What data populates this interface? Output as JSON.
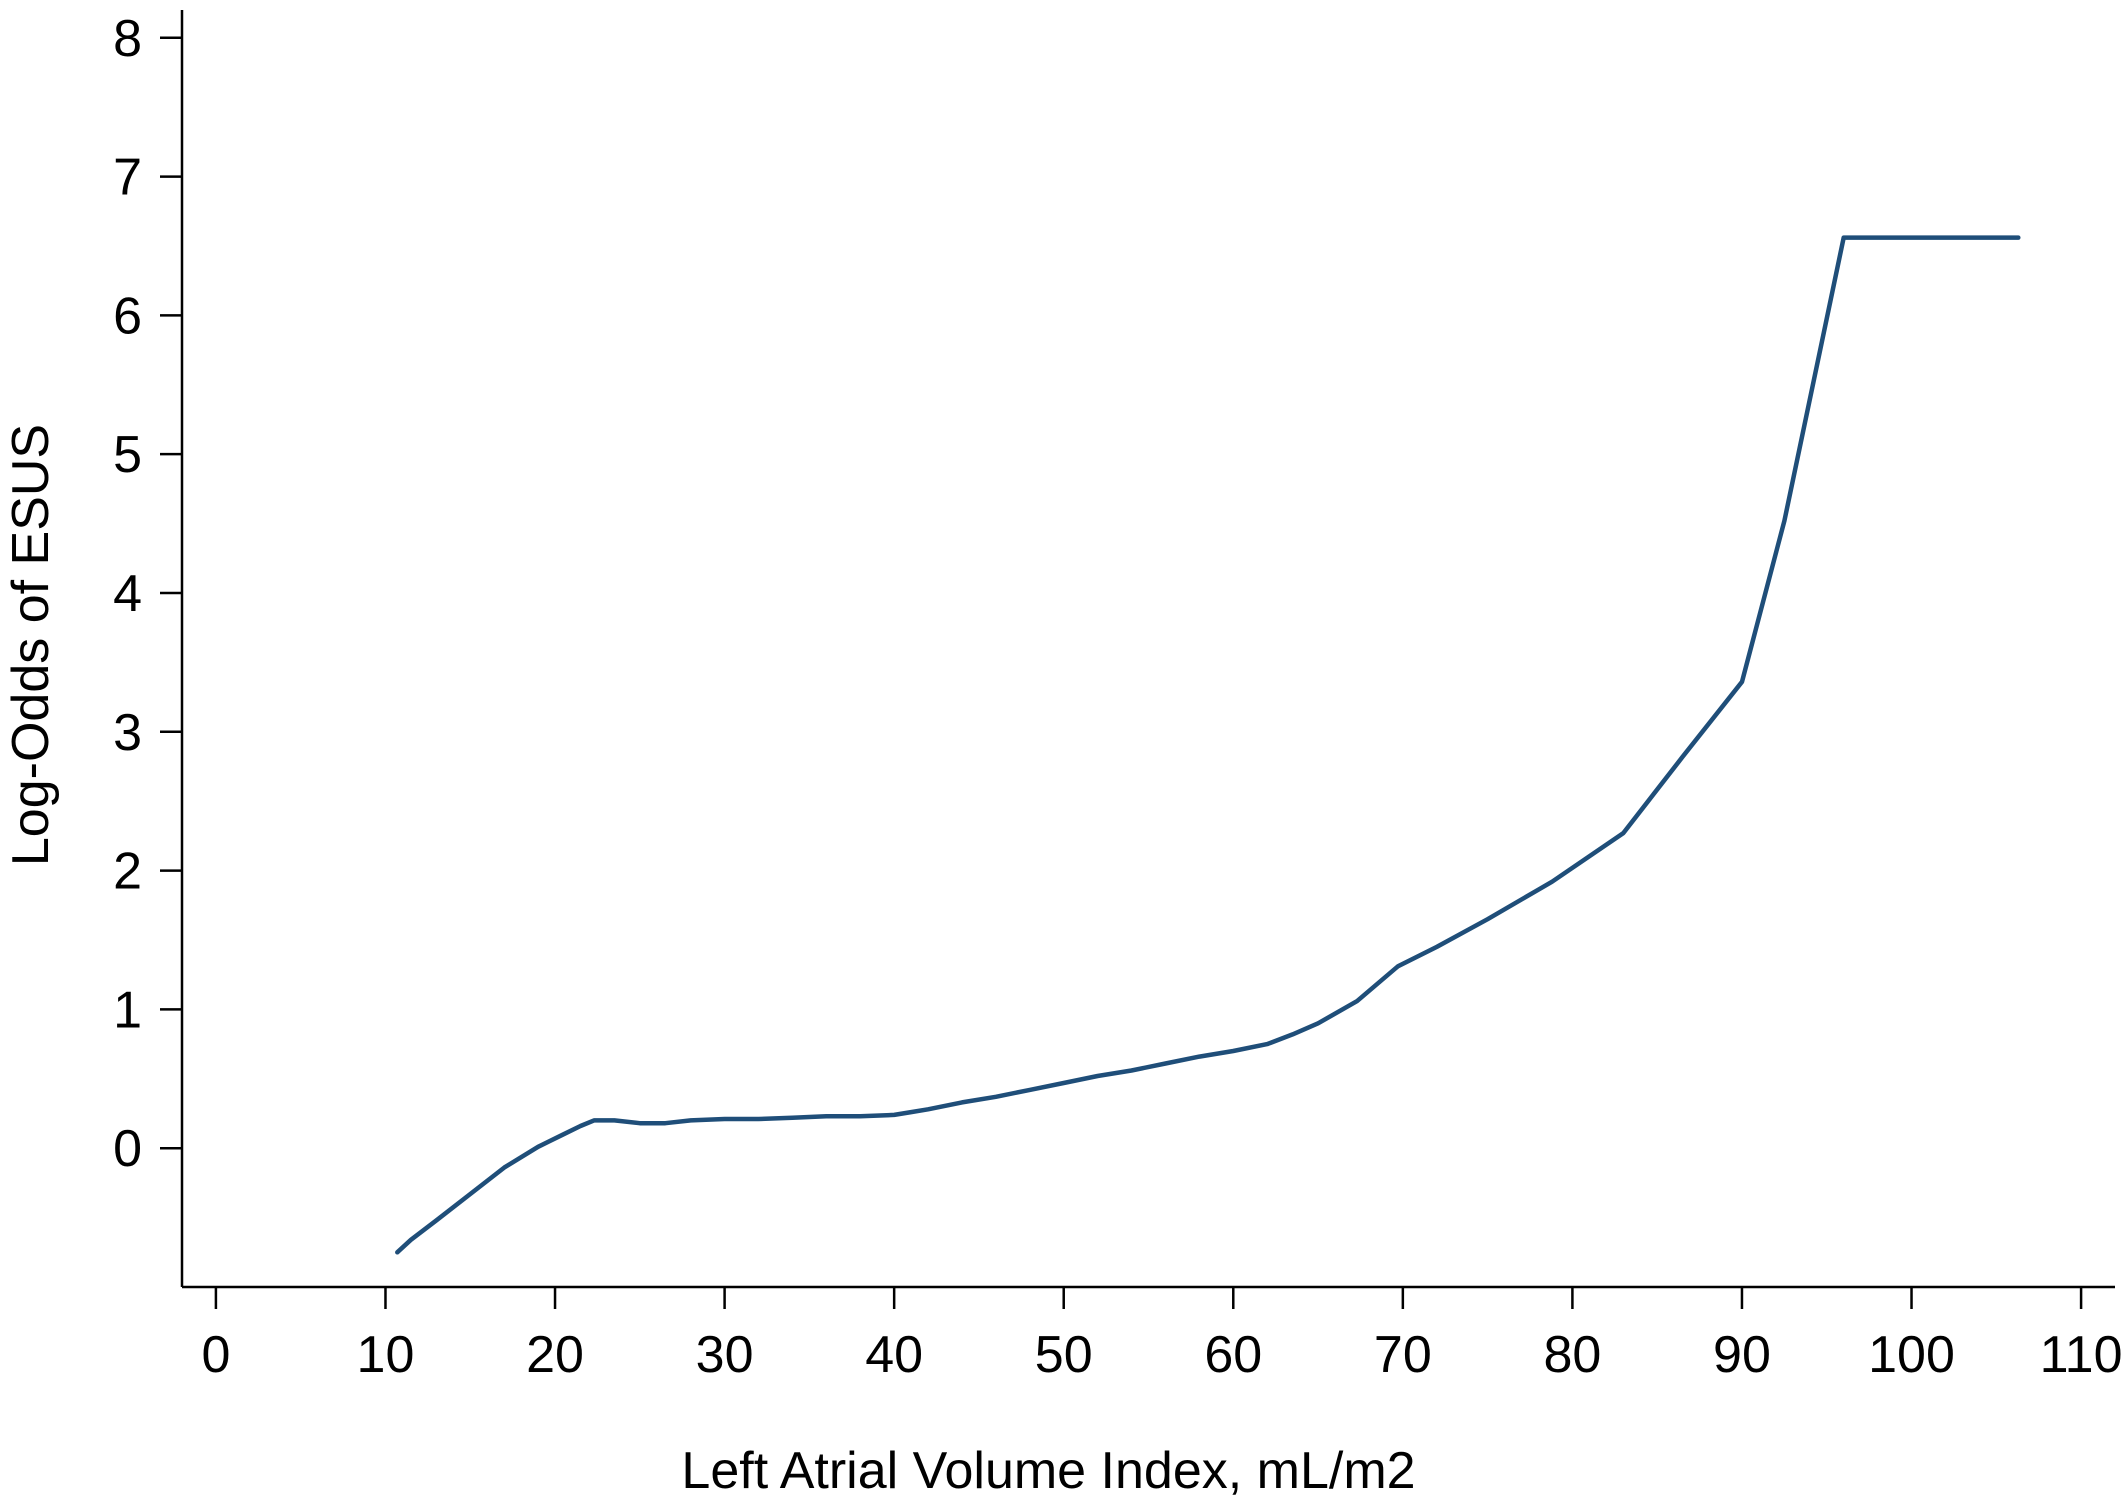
{
  "chart_data": {
    "type": "line",
    "title": "",
    "xlabel": "Left Atrial Volume Index, mL/m2",
    "ylabel": "Log-Odds of ESUS",
    "xlim": [
      -2,
      112
    ],
    "ylim": [
      -1,
      8.2
    ],
    "xticks": [
      0,
      10,
      20,
      30,
      40,
      50,
      60,
      70,
      80,
      90,
      100,
      110
    ],
    "yticks": [
      0,
      1,
      2,
      3,
      4,
      5,
      6,
      7,
      8
    ],
    "grid": false,
    "legend": "none",
    "series_color": "#1f4e79",
    "series": [
      {
        "x": [
          10.7,
          11.5,
          13,
          15,
          17,
          19,
          20.5,
          21.5,
          22.3,
          23.5,
          25,
          26.5,
          28,
          30,
          32,
          34,
          36,
          38,
          40,
          41,
          42,
          44,
          46,
          48,
          50,
          52,
          54,
          56,
          58,
          60,
          62,
          63.5,
          65,
          67.3,
          69.7,
          72,
          75,
          78.8,
          83,
          86.5,
          90,
          92.5,
          96,
          100,
          103,
          106.3
        ],
        "y": [
          -0.75,
          -0.66,
          -0.52,
          -0.33,
          -0.14,
          0.01,
          0.1,
          0.16,
          0.2,
          0.2,
          0.18,
          0.18,
          0.2,
          0.21,
          0.21,
          0.22,
          0.23,
          0.23,
          0.24,
          0.26,
          0.28,
          0.33,
          0.37,
          0.42,
          0.47,
          0.52,
          0.56,
          0.61,
          0.66,
          0.7,
          0.75,
          0.82,
          0.9,
          1.06,
          1.31,
          1.45,
          1.65,
          1.92,
          2.27,
          2.82,
          3.36,
          4.52,
          6.56,
          6.56,
          6.56,
          6.56
        ]
      }
    ]
  }
}
